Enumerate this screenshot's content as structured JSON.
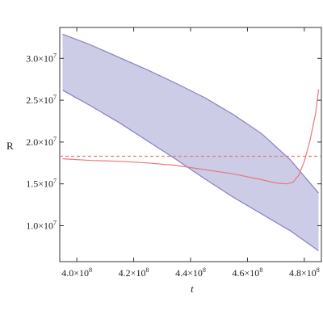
{
  "chart_data": {
    "type": "area",
    "xlabel": "t",
    "ylabel": "R",
    "xlim": [
      394000000,
      486000000
    ],
    "ylim": [
      5700000,
      33700000
    ],
    "grid": false,
    "x_ticks": [
      {
        "value": 400000000,
        "mantissa": "4.0",
        "exp": "8"
      },
      {
        "value": 420000000,
        "mantissa": "4.2",
        "exp": "8"
      },
      {
        "value": 440000000,
        "mantissa": "4.4",
        "exp": "8"
      },
      {
        "value": 460000000,
        "mantissa": "4.6",
        "exp": "8"
      },
      {
        "value": 480000000,
        "mantissa": "4.8",
        "exp": "8"
      }
    ],
    "y_ticks": [
      {
        "value": 10000000,
        "mantissa": "1.0",
        "exp": "7"
      },
      {
        "value": 15000000,
        "mantissa": "1.5",
        "exp": "7"
      },
      {
        "value": 20000000,
        "mantissa": "2.0",
        "exp": "7"
      },
      {
        "value": 25000000,
        "mantissa": "2.5",
        "exp": "7"
      },
      {
        "value": 30000000,
        "mantissa": "3.0",
        "exp": "7"
      }
    ],
    "band": {
      "color_fill": "#cccce6",
      "color_edge": "#8a7fc0",
      "x": [
        395000000,
        405000000,
        415000000,
        425000000,
        435000000,
        445000000,
        455000000,
        465000000,
        475000000,
        485000000
      ],
      "upper": [
        32900000,
        31600000,
        30100000,
        28600000,
        27000000,
        25300000,
        23300000,
        21000000,
        17900000,
        13900000
      ],
      "lower": [
        26200000,
        24300000,
        22300000,
        20100000,
        17900000,
        15600000,
        13400000,
        11400000,
        9400000,
        7000000
      ]
    },
    "series": [
      {
        "color": "#e8777b",
        "style": "solid",
        "x": [
          395000000,
          405000000,
          415000000,
          425000000,
          435000000,
          445000000,
          455000000,
          465000000,
          470000000,
          474000000,
          476000000,
          478000000,
          480000000,
          482000000,
          484000000,
          485000000
        ],
        "y": [
          18000000,
          17800000,
          17700000,
          17500000,
          17200000,
          16700000,
          16200000,
          15500000,
          15100000,
          15000000,
          15200000,
          16000000,
          17700000,
          20200000,
          23500000,
          26300000
        ]
      },
      {
        "color": "#e8777b",
        "style": "dashed",
        "x": [
          394000000,
          486000000
        ],
        "y": [
          18300000,
          18300000
        ]
      }
    ]
  }
}
